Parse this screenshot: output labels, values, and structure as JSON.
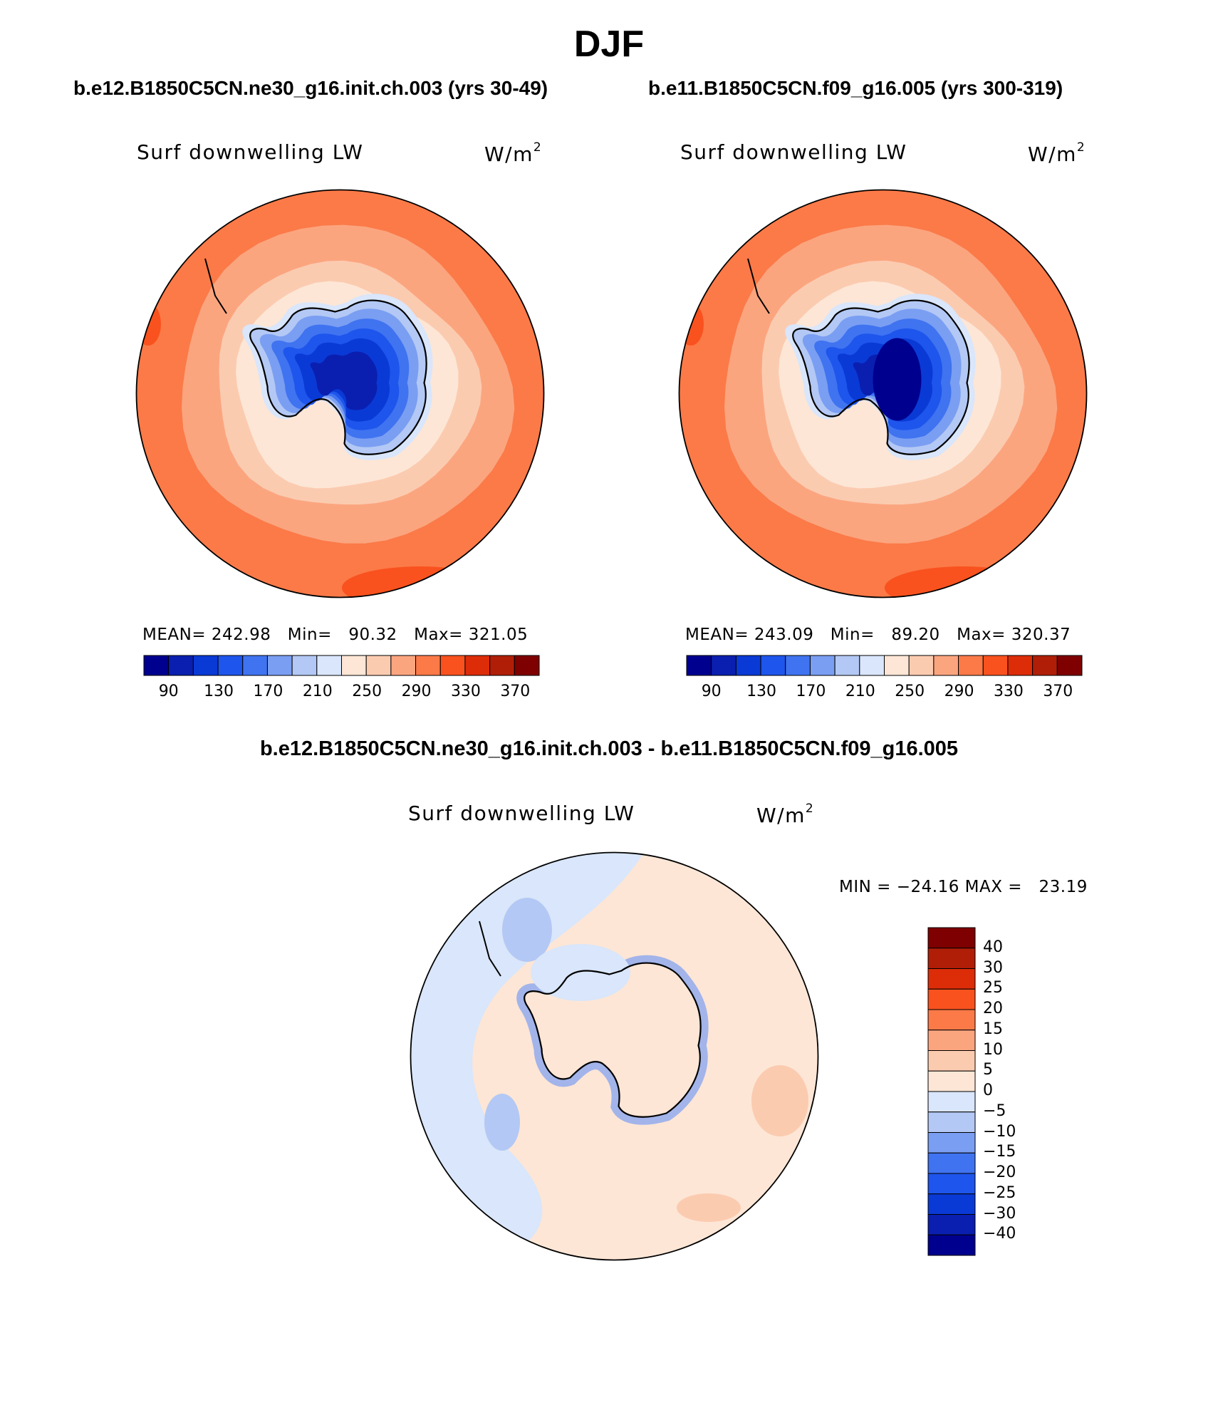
{
  "page_title": "DJF",
  "palette": {
    "c1": "#00008f",
    "c2": "#0a1fb0",
    "c3": "#0a3ad6",
    "c4": "#1e55ec",
    "c5": "#3f73f0",
    "c6": "#7a9ef2",
    "c7": "#b3c8f4",
    "c8": "#d9e6fb",
    "c9": "#fde6d6",
    "c10": "#fbcbb0",
    "c11": "#fba57f",
    "c12": "#fb7a48",
    "c13": "#f9521e",
    "c14": "#dd2c08",
    "c15": "#b01e08",
    "c16": "#7f0000",
    "land": "#000000"
  },
  "panels": [
    {
      "case_title": "b.e12.B1850C5CN.ne30_g16.init.ch.003 (yrs 30-49)",
      "variable": "Surf downwelling LW",
      "units": "W/m",
      "units_sup": "2",
      "stats": "MEAN= 242.98   Min=   90.32   Max= 321.05"
    },
    {
      "case_title": "b.e11.B1850C5CN.f09_g16.005 (yrs 300-319)",
      "variable": "Surf downwelling LW",
      "units": "W/m",
      "units_sup": "2",
      "stats": "MEAN= 243.09   Min=   89.20   Max= 320.37"
    }
  ],
  "diff_panel": {
    "title": "b.e12.B1850C5CN.ne30_g16.init.ch.003 - b.e11.B1850C5CN.f09_g16.005",
    "variable": "Surf downwelling LW",
    "units": "W/m",
    "units_sup": "2",
    "stats": "MIN = −24.16 MAX =   23.19"
  },
  "chart_data": [
    {
      "type": "heatmap",
      "projection": "south polar stereographic",
      "title": "b.e12.B1850C5CN.ne30_g16.init.ch.003 (yrs 30-49)",
      "variable": "Surf downwelling LW",
      "units": "W/m2",
      "mean": 242.98,
      "min": 90.32,
      "max": 321.05,
      "levels": [
        90,
        110,
        130,
        150,
        170,
        190,
        210,
        230,
        250,
        270,
        290,
        310,
        330,
        350,
        370
      ],
      "colorbar_labels": [
        "90",
        "130",
        "170",
        "210",
        "250",
        "290",
        "330",
        "370"
      ],
      "contours": [
        {
          "value": 250,
          "color_key": "c9"
        },
        {
          "value": 270,
          "color_key": "c10"
        },
        {
          "value": 290,
          "color_key": "c11"
        },
        {
          "value": 310,
          "color_key": "c12"
        },
        {
          "value": 230,
          "color_key": "c8"
        },
        {
          "value": 210,
          "color_key": "c7"
        },
        {
          "value": 190,
          "color_key": "c6"
        },
        {
          "value": 170,
          "color_key": "c5"
        },
        {
          "value": 150,
          "color_key": "c4"
        },
        {
          "value": 130,
          "color_key": "c3"
        },
        {
          "value": 110,
          "color_key": "c2"
        }
      ]
    },
    {
      "type": "heatmap",
      "projection": "south polar stereographic",
      "title": "b.e11.B1850C5CN.f09_g16.005 (yrs 300-319)",
      "variable": "Surf downwelling LW",
      "units": "W/m2",
      "mean": 243.09,
      "min": 89.2,
      "max": 320.37,
      "levels": [
        90,
        110,
        130,
        150,
        170,
        190,
        210,
        230,
        250,
        270,
        290,
        310,
        330,
        350,
        370
      ],
      "colorbar_labels": [
        "90",
        "130",
        "170",
        "210",
        "250",
        "290",
        "330",
        "370"
      ],
      "contours": [
        {
          "value": 250,
          "color_key": "c9"
        },
        {
          "value": 270,
          "color_key": "c10"
        },
        {
          "value": 290,
          "color_key": "c11"
        },
        {
          "value": 310,
          "color_key": "c12"
        },
        {
          "value": 230,
          "color_key": "c8"
        },
        {
          "value": 210,
          "color_key": "c7"
        },
        {
          "value": 190,
          "color_key": "c6"
        },
        {
          "value": 170,
          "color_key": "c5"
        },
        {
          "value": 150,
          "color_key": "c4"
        },
        {
          "value": 130,
          "color_key": "c3"
        },
        {
          "value": 110,
          "color_key": "c2"
        },
        {
          "value": 90,
          "color_key": "c1"
        }
      ]
    },
    {
      "type": "heatmap",
      "projection": "south polar stereographic",
      "title": "b.e12.B1850C5CN.ne30_g16.init.ch.003 - b.e11.B1850C5CN.f09_g16.005",
      "variable": "Surf downwelling LW",
      "units": "W/m2",
      "min": -24.16,
      "max": 23.19,
      "levels": [
        -40,
        -30,
        -25,
        -20,
        -15,
        -10,
        -5,
        0,
        5,
        10,
        15,
        20,
        25,
        30,
        40
      ],
      "colorbar_labels": [
        "40",
        "30",
        "25",
        "20",
        "15",
        "10",
        "5",
        "0",
        "−5",
        "−10",
        "−15",
        "−20",
        "−25",
        "−30",
        "−40"
      ],
      "colorbar_orientation": "vertical"
    }
  ]
}
